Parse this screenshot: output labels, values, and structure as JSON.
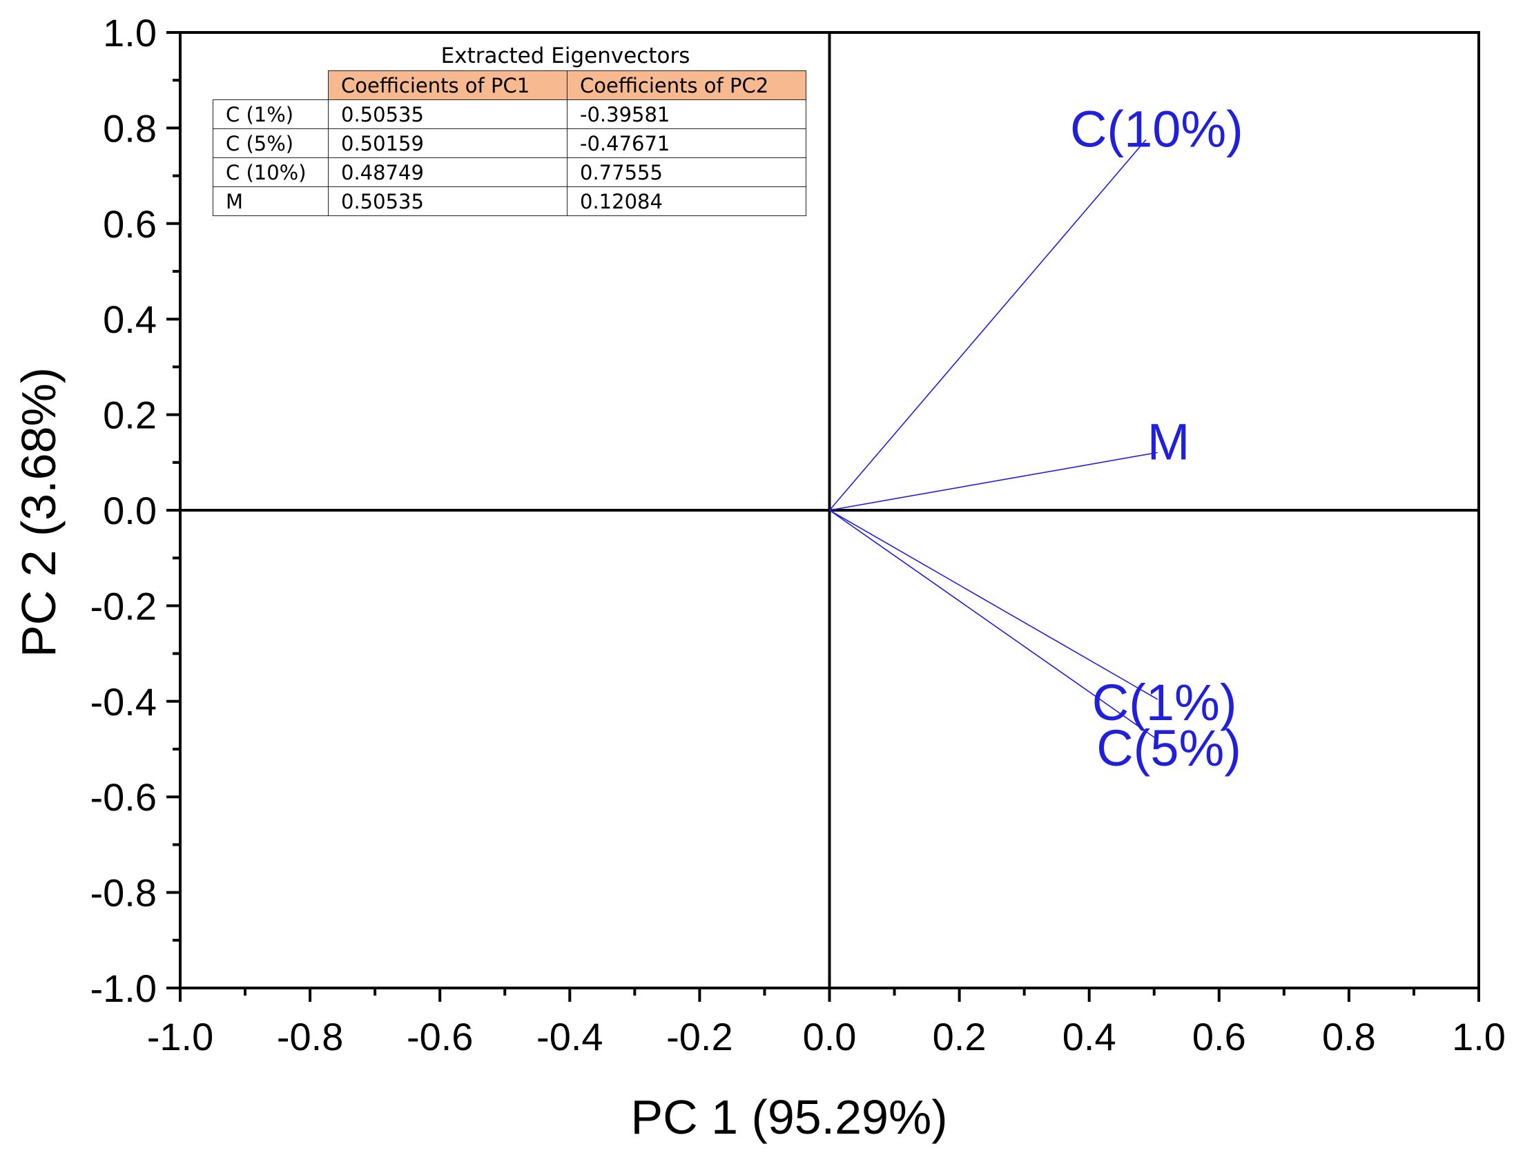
{
  "chart_data": {
    "type": "biplot",
    "xlabel": "PC 1 (95.29%)",
    "ylabel": "PC 2 (3.68%)",
    "xlim": [
      -1.0,
      1.0
    ],
    "ylim": [
      -1.0,
      1.0
    ],
    "x_ticks": [
      "-1.0",
      "-0.8",
      "-0.6",
      "-0.4",
      "-0.2",
      "0.0",
      "0.2",
      "0.4",
      "0.6",
      "0.8",
      "1.0"
    ],
    "y_ticks": [
      "1.0",
      "0.8",
      "0.6",
      "0.4",
      "0.2",
      "0.0",
      "-0.2",
      "-0.4",
      "-0.6",
      "-0.8",
      "-1.0"
    ],
    "grid": false,
    "vector_color": "#1f1fdd",
    "vectors": [
      {
        "label": "C(10%)",
        "x": 0.48749,
        "y": 0.77555
      },
      {
        "label": "M",
        "x": 0.50535,
        "y": 0.12084
      },
      {
        "label": "C(1%)",
        "x": 0.50535,
        "y": -0.39581
      },
      {
        "label": "C(5%)",
        "x": 0.50159,
        "y": -0.47671
      }
    ],
    "table": {
      "title": "Extracted Eigenvectors",
      "header_color": "#f7b98f",
      "columns": [
        "Coefficients of PC1",
        "Coefficients of PC2"
      ],
      "rows": [
        {
          "label": "C (1%)",
          "pc1": "0.50535",
          "pc2": "-0.39581"
        },
        {
          "label": "C (5%)",
          "pc1": "0.50159",
          "pc2": "-0.47671"
        },
        {
          "label": "C (10%)",
          "pc1": "0.48749",
          "pc2": "0.77555"
        },
        {
          "label": "M",
          "pc1": "0.50535",
          "pc2": "0.12084"
        }
      ]
    }
  }
}
